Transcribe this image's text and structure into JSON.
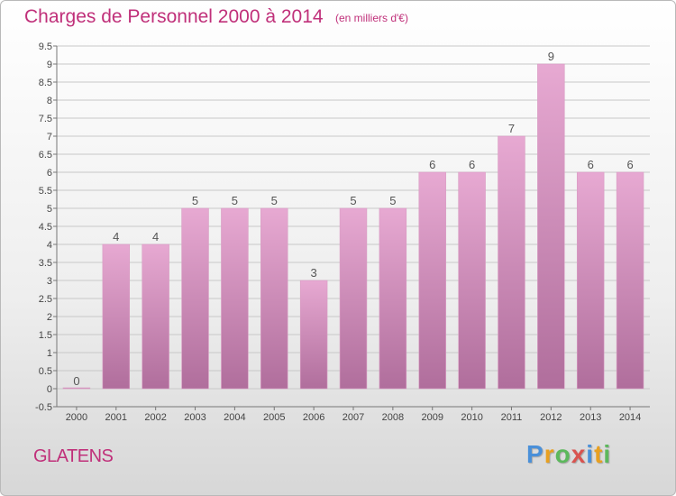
{
  "header": {
    "title": "Charges de Personnel 2000 à 2014",
    "subtitle": "(en milliers d'€)"
  },
  "footer": {
    "place": "GLATENS",
    "brand_letters": [
      {
        "ch": "P",
        "color": "#4a90d9"
      },
      {
        "ch": "r",
        "color": "#e8a020"
      },
      {
        "ch": "o",
        "color": "#5cb85c"
      },
      {
        "ch": "x",
        "color": "#d9534f"
      },
      {
        "ch": "i",
        "color": "#4a90d9"
      },
      {
        "ch": "t",
        "color": "#e8a020"
      },
      {
        "ch": "i",
        "color": "#5cb85c"
      }
    ]
  },
  "colors": {
    "title": "#c0307a",
    "bar_top": "#e7a9d2",
    "bar_bottom": "#b06e9c",
    "grid": "#c8c8c8"
  },
  "chart_data": {
    "type": "bar",
    "title": "Charges de Personnel 2000 à 2014",
    "subtitle": "(en milliers d'€)",
    "categories": [
      "2000",
      "2001",
      "2002",
      "2003",
      "2004",
      "2005",
      "2006",
      "2007",
      "2008",
      "2009",
      "2010",
      "2011",
      "2012",
      "2013",
      "2014"
    ],
    "values": [
      0,
      4,
      4,
      5,
      5,
      5,
      3,
      5,
      5,
      6,
      6,
      7,
      9,
      6,
      6
    ],
    "ylim": [
      -0.5,
      9.5
    ],
    "yticks": [
      "9.5",
      "9",
      "8.5",
      "8",
      "7.5",
      "7",
      "6.5",
      "6",
      "5.5",
      "5",
      "4.5",
      "4",
      "3.5",
      "3",
      "2.5",
      "2",
      "1.5",
      "1",
      "0.5",
      "0",
      "-0.5"
    ],
    "xlabel": "",
    "ylabel": "",
    "grid": true
  }
}
